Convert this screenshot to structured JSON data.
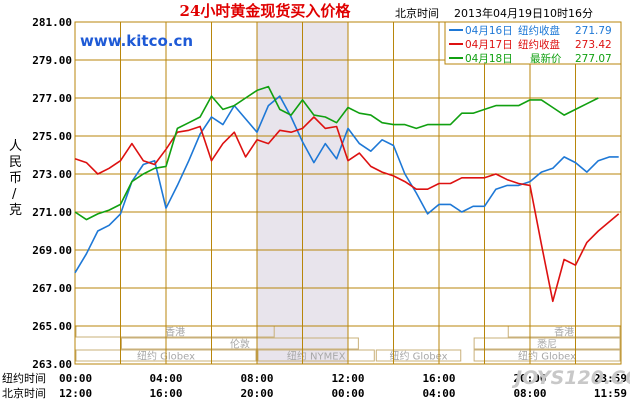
{
  "header": {
    "title": "24小时黄金现货买入价格",
    "timezone_label": "北京时间",
    "timestamp": "2013年04月19日10时16分",
    "site": "www.kitco.cn",
    "watermark": "JOYS120.COM"
  },
  "legend": [
    {
      "date": "04月16日",
      "label": "纽约收盘",
      "value": "271.79",
      "color": "#1e78d6"
    },
    {
      "date": "04月17日",
      "label": "纽约收盘",
      "value": "273.42",
      "color": "#dd1111"
    },
    {
      "date": "04月18日",
      "label": "最新价",
      "value": "277.07",
      "color": "#11a011"
    }
  ],
  "axes": {
    "unit_label": [
      "人",
      "民",
      "币",
      "/",
      "克"
    ],
    "row_label_ny": "纽约时间",
    "row_label_bj": "北京时间",
    "ny_ticks": [
      "00:00",
      "04:00",
      "08:00",
      "12:00",
      "16:00",
      "20:00",
      "23:59"
    ],
    "bj_ticks": [
      "12:00",
      "16:00",
      "20:00",
      "00:00",
      "04:00",
      "08:00",
      "11:59"
    ]
  },
  "sessions": {
    "hongkong": "香港",
    "london": "伦敦",
    "sydney": "悉尼",
    "globex": "纽约 Globex",
    "nymex": "纽约 NYMEX"
  },
  "colors": {
    "grid": "#b8860b",
    "axis_text": "#000000",
    "title": "#e00000",
    "site": "#1e5ad6",
    "shade": "#e8e4ec"
  },
  "chart_data": {
    "type": "line",
    "x_unit": "hours since 00:00 New York time",
    "xlim": [
      0,
      24
    ],
    "ylim": [
      263,
      281
    ],
    "yticks": [
      263,
      265,
      267,
      269,
      271,
      273,
      275,
      277,
      279,
      281
    ],
    "shaded_range": [
      8,
      12
    ],
    "series": [
      {
        "name": "04月16日",
        "color": "#1e78d6",
        "x": [
          0,
          0.5,
          1,
          1.5,
          2,
          2.5,
          3,
          3.5,
          4,
          4.5,
          5,
          5.5,
          6,
          6.5,
          7,
          7.5,
          8,
          8.5,
          9,
          9.5,
          10,
          10.5,
          11,
          11.5,
          12,
          12.5,
          13,
          13.5,
          14,
          14.5,
          15,
          15.5,
          16,
          16.5,
          17,
          17.5,
          18,
          18.5,
          19,
          19.5,
          20,
          20.5,
          21,
          21.5,
          22,
          22.5,
          23,
          23.5,
          23.9
        ],
        "y": [
          267.8,
          268.8,
          270.0,
          270.3,
          270.9,
          272.6,
          273.5,
          273.7,
          271.2,
          272.4,
          273.7,
          275.1,
          276.0,
          275.6,
          276.6,
          275.9,
          275.2,
          276.6,
          277.1,
          276.0,
          274.7,
          273.6,
          274.6,
          273.8,
          275.4,
          274.6,
          274.2,
          274.8,
          274.5,
          273.0,
          272.0,
          270.9,
          271.4,
          271.4,
          271.0,
          271.3,
          271.3,
          272.2,
          272.4,
          272.4,
          272.6,
          273.1,
          273.3,
          273.9,
          273.6,
          273.1,
          273.7,
          273.9,
          273.9
        ]
      },
      {
        "name": "04月17日",
        "color": "#dd1111",
        "x": [
          0,
          0.5,
          1,
          1.5,
          2,
          2.5,
          3,
          3.5,
          4,
          4.5,
          5,
          5.5,
          6,
          6.5,
          7,
          7.5,
          8,
          8.5,
          9,
          9.5,
          10,
          10.5,
          11,
          11.5,
          12,
          12.5,
          13,
          13.5,
          14,
          14.5,
          15,
          15.5,
          16,
          16.5,
          17,
          17.5,
          18,
          18.5,
          19,
          19.5,
          20,
          20.5,
          21,
          21.5,
          22,
          22.5,
          23,
          23.5,
          23.9
        ],
        "y": [
          273.8,
          273.6,
          273.0,
          273.3,
          273.7,
          274.6,
          273.7,
          273.5,
          274.3,
          275.2,
          275.3,
          275.5,
          273.7,
          274.6,
          275.2,
          273.9,
          274.8,
          274.6,
          275.3,
          275.2,
          275.4,
          276.0,
          275.4,
          275.5,
          273.7,
          274.1,
          273.4,
          273.1,
          272.9,
          272.6,
          272.2,
          272.2,
          272.5,
          272.5,
          272.8,
          272.8,
          272.8,
          273.0,
          272.7,
          272.5,
          272.4,
          269.3,
          266.3,
          268.5,
          268.2,
          269.4,
          270.0,
          270.5,
          270.9
        ]
      },
      {
        "name": "04月18日",
        "color": "#11a011",
        "x": [
          0,
          0.5,
          1,
          1.5,
          2,
          2.5,
          3,
          3.5,
          4,
          4.5,
          5,
          5.5,
          6,
          6.5,
          7,
          7.5,
          8,
          8.5,
          9,
          9.5,
          10,
          10.5,
          11,
          11.5,
          12,
          12.5,
          13,
          13.5,
          14,
          14.5,
          15,
          15.5,
          16,
          16.5,
          17,
          17.5,
          18,
          18.5,
          19,
          19.5,
          20,
          20.5,
          21,
          21.5,
          22,
          22.5,
          23
        ],
        "y": [
          271.0,
          270.6,
          270.9,
          271.1,
          271.4,
          272.6,
          273.0,
          273.3,
          273.4,
          275.4,
          275.7,
          276.0,
          277.1,
          276.4,
          276.6,
          277.0,
          277.4,
          277.6,
          276.4,
          276.1,
          276.9,
          276.1,
          276.0,
          275.7,
          276.5,
          276.2,
          276.1,
          275.7,
          275.6,
          275.6,
          275.4,
          275.6,
          275.6,
          275.6,
          276.2,
          276.2,
          276.4,
          276.6,
          276.6,
          276.6,
          276.9,
          276.9,
          276.5,
          276.1,
          276.4,
          276.7,
          277.0
        ]
      }
    ]
  }
}
